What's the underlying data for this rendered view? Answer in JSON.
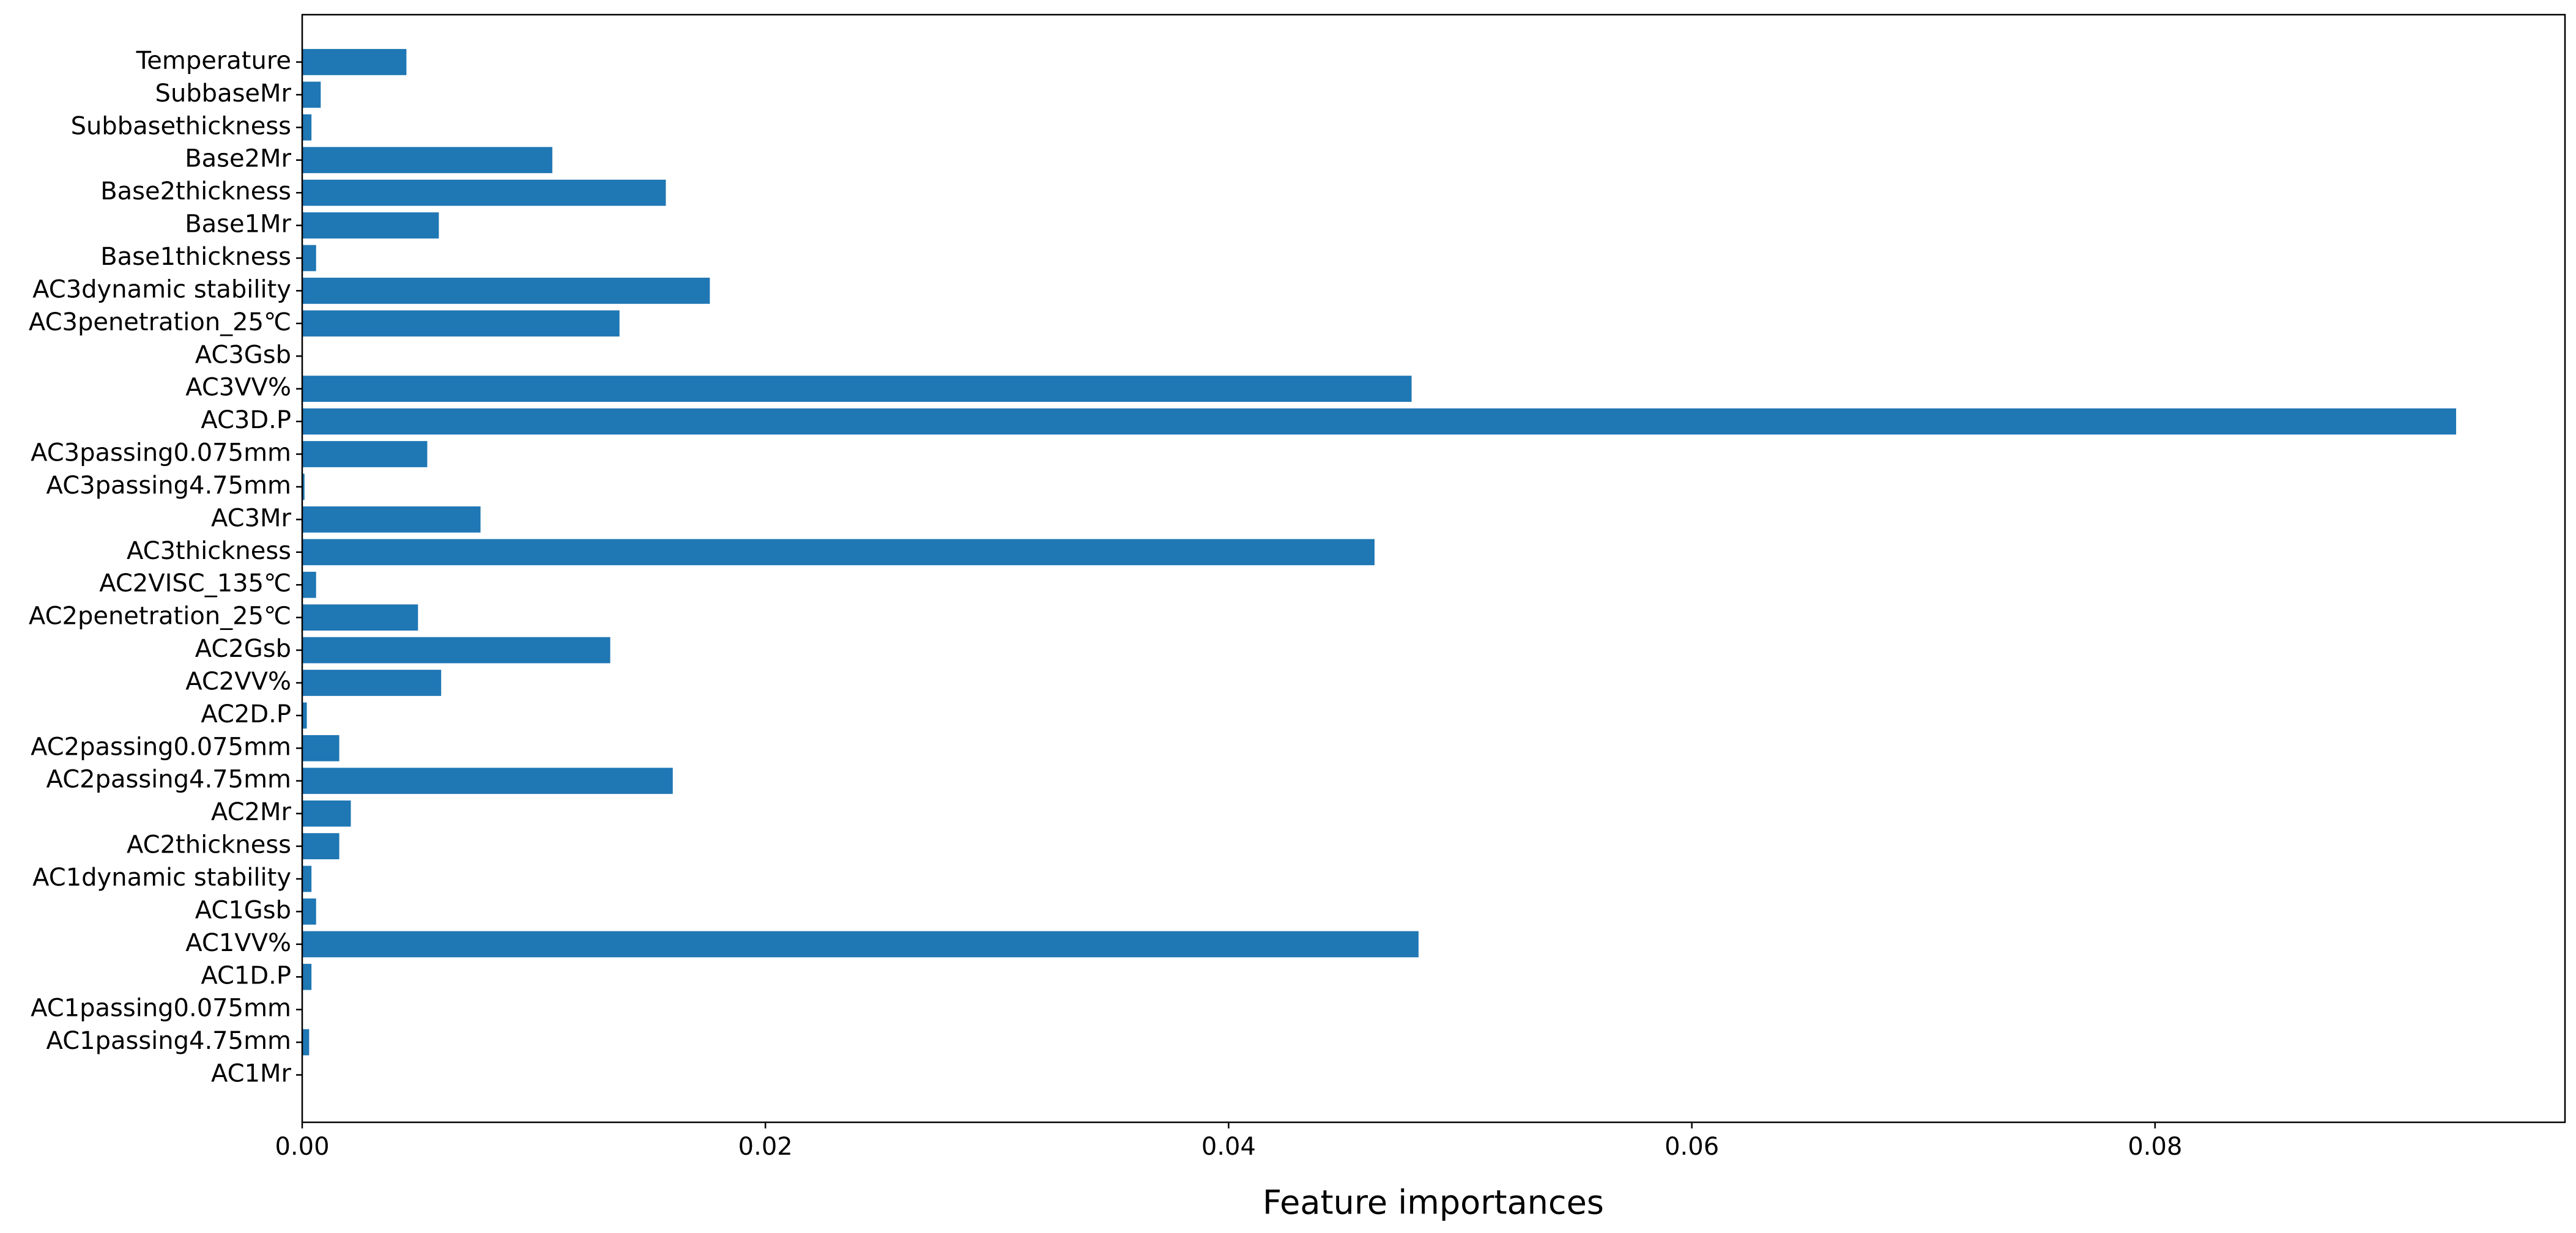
{
  "chart_data": {
    "type": "barh",
    "xlabel": "Feature importances",
    "categories": [
      "AC1Mr",
      "AC1passing4.75mm",
      "AC1passing0.075mm",
      "AC1D.P",
      "AC1VV%",
      "AC1Gsb",
      "AC1dynamic stability",
      "AC2thickness",
      "AC2Mr",
      "AC2passing4.75mm",
      "AC2passing0.075mm",
      "AC2D.P",
      "AC2VV%",
      "AC2Gsb",
      "AC2penetration_25℃",
      "AC2VISC_135℃",
      "AC3thickness",
      "AC3Mr",
      "AC3passing4.75mm",
      "AC3passing0.075mm",
      "AC3D.P",
      "AC3VV%",
      "AC3Gsb",
      "AC3penetration_25℃",
      "AC3dynamic stability",
      "Base1thickness",
      "Base1Mr",
      "Base2thickness",
      "Base2Mr",
      "Subbasethickness",
      "SubbaseMr",
      "Temperature"
    ],
    "values": [
      0,
      0.0003,
      0,
      0.0004,
      0.0482,
      0.0006,
      0.0004,
      0.0016,
      0.0021,
      0.016,
      0.0016,
      0.0002,
      0.006,
      0.0133,
      0.005,
      0.0006,
      0.0463,
      0.0077,
      0.0001,
      0.0054,
      0.093,
      0.0479,
      0,
      0.0137,
      0.0176,
      0.0006,
      0.0059,
      0.0157,
      0.0108,
      0.0004,
      0.0008,
      0.0045
    ],
    "color": "#1f77b4",
    "xlim": [
      0,
      0.0977
    ],
    "xticks": [
      {
        "value": 0,
        "label": "0.00"
      },
      0.02,
      0.04,
      0.06,
      0.08
    ]
  }
}
